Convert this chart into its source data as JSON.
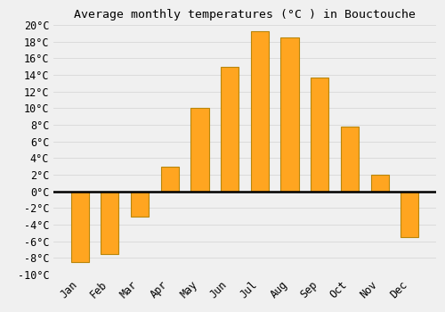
{
  "title": "Average monthly temperatures (°C ) in Bouctouche",
  "months": [
    "Jan",
    "Feb",
    "Mar",
    "Apr",
    "May",
    "Jun",
    "Jul",
    "Aug",
    "Sep",
    "Oct",
    "Nov",
    "Dec"
  ],
  "values": [
    -8.5,
    -7.5,
    -3.0,
    3.0,
    10.0,
    15.0,
    19.2,
    18.5,
    13.7,
    7.8,
    2.0,
    -5.5
  ],
  "bar_color": "#FFA520",
  "bar_edge_color": "#B8860B",
  "background_color": "#f0f0f0",
  "grid_color": "#d8d8d8",
  "ylim": [
    -10,
    20
  ],
  "yticks": [
    -10,
    -8,
    -6,
    -4,
    -2,
    0,
    2,
    4,
    6,
    8,
    10,
    12,
    14,
    16,
    18,
    20
  ],
  "title_fontsize": 9.5,
  "tick_fontsize": 8.5,
  "bar_width": 0.6
}
